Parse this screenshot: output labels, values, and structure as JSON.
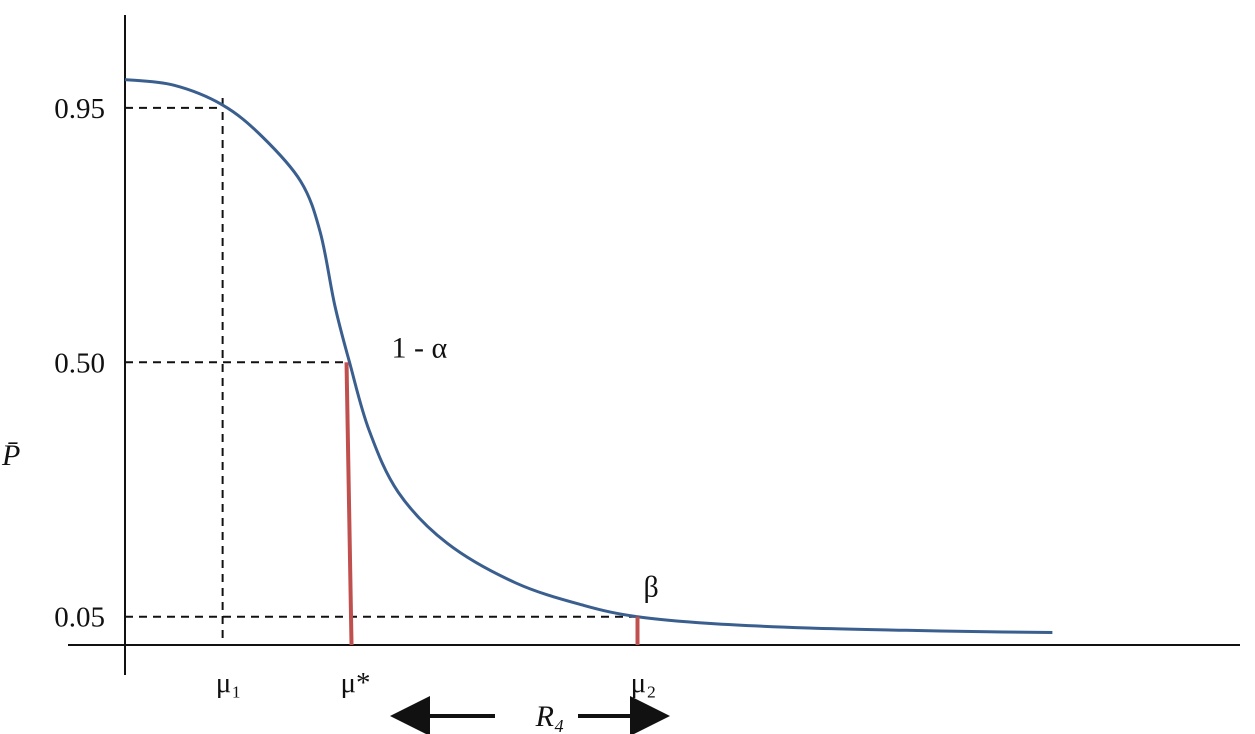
{
  "chart_data": {
    "type": "line",
    "ylabel": "P̄",
    "y_ticks": [
      {
        "value": 0.95,
        "label": "0.95"
      },
      {
        "value": 0.5,
        "label": "0.50"
      },
      {
        "value": 0.05,
        "label": "0.05"
      }
    ],
    "x_ticks": [
      {
        "value": 1,
        "label": "μ₁"
      },
      {
        "value": 2.3,
        "label": "μ*"
      },
      {
        "value": 5.25,
        "label": "μ₂"
      }
    ],
    "ylim": [
      0,
      1.07
    ],
    "xlim": [
      0,
      10.5
    ],
    "series": [
      {
        "color": "#3a5f8f",
        "points": [
          [
            0,
            1.0
          ],
          [
            0.5,
            0.99
          ],
          [
            1.0,
            0.955
          ],
          [
            1.4,
            0.9
          ],
          [
            1.8,
            0.82
          ],
          [
            2.0,
            0.73
          ],
          [
            2.15,
            0.6
          ],
          [
            2.3,
            0.5
          ],
          [
            2.5,
            0.38
          ],
          [
            2.8,
            0.27
          ],
          [
            3.3,
            0.18
          ],
          [
            4.0,
            0.11
          ],
          [
            4.7,
            0.07
          ],
          [
            5.25,
            0.05
          ],
          [
            6.0,
            0.038
          ],
          [
            7.0,
            0.03
          ],
          [
            8.0,
            0.026
          ],
          [
            9.0,
            0.023
          ],
          [
            9.5,
            0.022
          ]
        ]
      }
    ],
    "annotations": {
      "alpha_label": "1 - α",
      "beta_label": "β",
      "range_label": "R₄"
    },
    "markers": {
      "alpha_x": 2.3,
      "alpha_y": 0.5,
      "beta_x": 5.25,
      "beta_y": 0.05,
      "marker_color": "#c0504d"
    },
    "grid": false
  }
}
